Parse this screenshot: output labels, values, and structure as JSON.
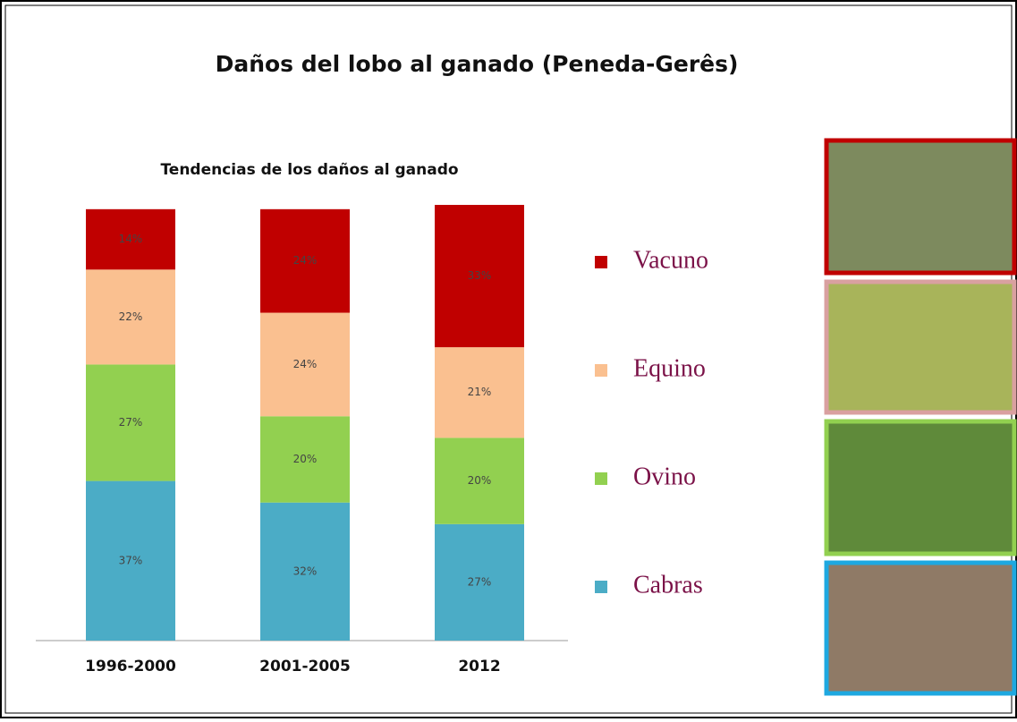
{
  "chart_data": {
    "type": "stacked-bar",
    "title": "Daños del lobo al ganado (Peneda-Gerês)",
    "subtitle": "Tendencias de los daños al ganado",
    "categories": [
      "1996-2000",
      "2001-2005",
      "2012"
    ],
    "series": [
      {
        "name": "Cabras",
        "color": "#4bacc6",
        "values": [
          37,
          32,
          27
        ],
        "value_labels": [
          "37%",
          "32%",
          "27%"
        ]
      },
      {
        "name": "Ovino",
        "color": "#92d050",
        "values": [
          27,
          20,
          20
        ],
        "value_labels": [
          "27%",
          "20%",
          "20%"
        ]
      },
      {
        "name": "Equino",
        "color": "#fac090",
        "values": [
          22,
          24,
          21
        ],
        "value_labels": [
          "22%",
          "24%",
          "21%"
        ]
      },
      {
        "name": "Vacuno",
        "color": "#c00000",
        "values": [
          14,
          24,
          33
        ],
        "value_labels": [
          "14%",
          "24%",
          "33%"
        ]
      }
    ]
  }
}
